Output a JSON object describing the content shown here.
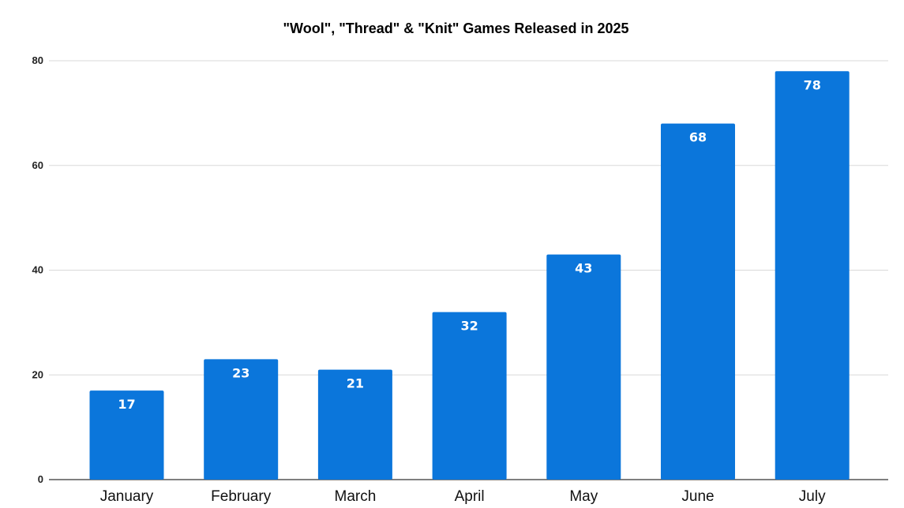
{
  "chart_data": {
    "type": "bar",
    "title": "\"Wool\", \"Thread\" & \"Knit\" Games Released in 2025",
    "xlabel": "",
    "ylabel": "",
    "categories": [
      "January",
      "February",
      "March",
      "April",
      "May",
      "June",
      "July"
    ],
    "values": [
      17,
      23,
      21,
      32,
      43,
      68,
      78
    ],
    "data_labels": [
      "17",
      "23",
      "21",
      "32",
      "43",
      "68",
      "78"
    ],
    "ylim": [
      0,
      80
    ],
    "y_ticks": [
      "0",
      "20",
      "40",
      "60",
      "80"
    ],
    "grid": true,
    "legend": "none",
    "bar_color": "#0b76db",
    "label_color": "#ffffff"
  }
}
